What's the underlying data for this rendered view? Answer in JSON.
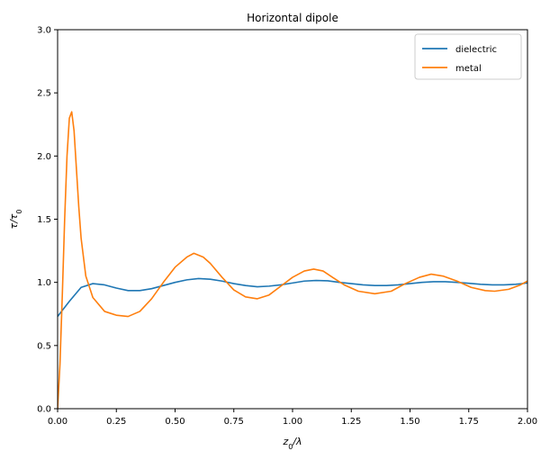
{
  "chart_data": {
    "type": "line",
    "title": "Horizontal dipole",
    "xlabel": "z0/λ",
    "ylabel": "τ/τ0",
    "xlim": [
      0,
      2.0
    ],
    "ylim": [
      0,
      3.0
    ],
    "x_ticks": [
      0,
      0.25,
      0.5,
      0.75,
      1.0,
      1.25,
      1.5,
      1.75,
      2.0
    ],
    "x_tick_labels": [
      "0.00",
      "0.25",
      "0.50",
      "0.75",
      "1.00",
      "1.25",
      "1.50",
      "1.75",
      "2.00"
    ],
    "y_ticks": [
      0,
      0.5,
      1.0,
      1.5,
      2.0,
      2.5,
      3.0
    ],
    "y_tick_labels": [
      "0.0",
      "0.5",
      "1.0",
      "1.5",
      "2.0",
      "2.5",
      "3.0"
    ],
    "grid": false,
    "legend_position": "top-right",
    "series": [
      {
        "name": "dielectric",
        "color": "#1f77b4",
        "points": [
          [
            0.0,
            0.73
          ],
          [
            0.05,
            0.85
          ],
          [
            0.1,
            0.96
          ],
          [
            0.15,
            0.99
          ],
          [
            0.2,
            0.98
          ],
          [
            0.25,
            0.955
          ],
          [
            0.3,
            0.935
          ],
          [
            0.35,
            0.935
          ],
          [
            0.4,
            0.95
          ],
          [
            0.45,
            0.975
          ],
          [
            0.5,
            1.0
          ],
          [
            0.55,
            1.02
          ],
          [
            0.6,
            1.03
          ],
          [
            0.65,
            1.025
          ],
          [
            0.7,
            1.01
          ],
          [
            0.75,
            0.99
          ],
          [
            0.8,
            0.975
          ],
          [
            0.85,
            0.965
          ],
          [
            0.9,
            0.97
          ],
          [
            0.95,
            0.98
          ],
          [
            1.0,
            0.995
          ],
          [
            1.05,
            1.01
          ],
          [
            1.1,
            1.015
          ],
          [
            1.15,
            1.012
          ],
          [
            1.2,
            1.0
          ],
          [
            1.25,
            0.99
          ],
          [
            1.3,
            0.98
          ],
          [
            1.35,
            0.975
          ],
          [
            1.4,
            0.975
          ],
          [
            1.45,
            0.98
          ],
          [
            1.5,
            0.99
          ],
          [
            1.55,
            1.0
          ],
          [
            1.6,
            1.005
          ],
          [
            1.65,
            1.005
          ],
          [
            1.7,
            1.0
          ],
          [
            1.75,
            0.993
          ],
          [
            1.8,
            0.985
          ],
          [
            1.85,
            0.98
          ],
          [
            1.9,
            0.98
          ],
          [
            1.95,
            0.985
          ],
          [
            2.0,
            0.995
          ]
        ]
      },
      {
        "name": "metal",
        "color": "#ff7f0e",
        "points": [
          [
            0.0,
            0.0
          ],
          [
            0.01,
            0.35
          ],
          [
            0.02,
            0.9
          ],
          [
            0.03,
            1.5
          ],
          [
            0.04,
            2.0
          ],
          [
            0.05,
            2.3
          ],
          [
            0.06,
            2.35
          ],
          [
            0.07,
            2.2
          ],
          [
            0.08,
            1.9
          ],
          [
            0.09,
            1.6
          ],
          [
            0.1,
            1.35
          ],
          [
            0.12,
            1.05
          ],
          [
            0.15,
            0.88
          ],
          [
            0.2,
            0.77
          ],
          [
            0.25,
            0.74
          ],
          [
            0.3,
            0.73
          ],
          [
            0.35,
            0.77
          ],
          [
            0.4,
            0.87
          ],
          [
            0.45,
            1.0
          ],
          [
            0.5,
            1.12
          ],
          [
            0.55,
            1.2
          ],
          [
            0.58,
            1.23
          ],
          [
            0.62,
            1.2
          ],
          [
            0.65,
            1.15
          ],
          [
            0.7,
            1.04
          ],
          [
            0.75,
            0.94
          ],
          [
            0.8,
            0.885
          ],
          [
            0.85,
            0.87
          ],
          [
            0.9,
            0.9
          ],
          [
            0.95,
            0.97
          ],
          [
            1.0,
            1.04
          ],
          [
            1.05,
            1.09
          ],
          [
            1.09,
            1.105
          ],
          [
            1.13,
            1.09
          ],
          [
            1.17,
            1.04
          ],
          [
            1.22,
            0.98
          ],
          [
            1.28,
            0.93
          ],
          [
            1.35,
            0.91
          ],
          [
            1.42,
            0.93
          ],
          [
            1.48,
            0.99
          ],
          [
            1.54,
            1.04
          ],
          [
            1.59,
            1.065
          ],
          [
            1.64,
            1.05
          ],
          [
            1.7,
            1.01
          ],
          [
            1.76,
            0.96
          ],
          [
            1.82,
            0.935
          ],
          [
            1.86,
            0.93
          ],
          [
            1.92,
            0.945
          ],
          [
            1.97,
            0.98
          ],
          [
            2.0,
            1.01
          ]
        ]
      }
    ]
  }
}
